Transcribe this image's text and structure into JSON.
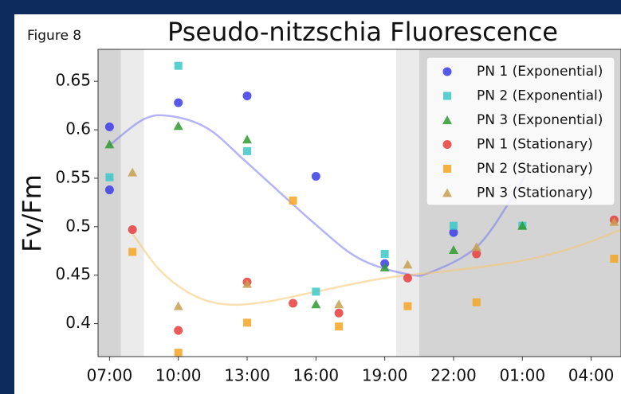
{
  "figure_label": "Figure 8",
  "chart_data": {
    "type": "scatter",
    "title": "Pseudo-nitzschia Fluorescence",
    "y_label": "Fv/Fm",
    "xlim": [
      6.5,
      29.3
    ],
    "ylim": [
      0.366,
      0.683
    ],
    "xticks": [
      {
        "value": 7,
        "label": "07:00"
      },
      {
        "value": 10,
        "label": "10:00"
      },
      {
        "value": 13,
        "label": "13:00"
      },
      {
        "value": 16,
        "label": "16:00"
      },
      {
        "value": 19,
        "label": "19:00"
      },
      {
        "value": 22,
        "label": "22:00"
      },
      {
        "value": 25,
        "label": "01:00"
      },
      {
        "value": 28,
        "label": "04:00"
      }
    ],
    "yticks": [
      0.4,
      0.45,
      0.5,
      0.55,
      0.6,
      0.65
    ],
    "legend": "upper right",
    "shading": [
      {
        "range": [
          6.5,
          7.5
        ],
        "color": "#d4d4d4"
      },
      {
        "range": [
          7.5,
          8.5
        ],
        "color": "#ebebeb"
      },
      {
        "range": [
          19.5,
          20.5
        ],
        "color": "#ebebeb"
      },
      {
        "range": [
          20.5,
          29.3
        ],
        "color": "#d4d4d4"
      }
    ],
    "series": [
      {
        "name": "PN 1 (Exponential)",
        "color": "#3b3be8",
        "marker": "circle",
        "x": [
          7,
          7,
          10,
          13,
          16,
          19,
          22
        ],
        "values": [
          0.603,
          0.538,
          0.628,
          0.635,
          0.552,
          0.462,
          0.494
        ]
      },
      {
        "name": "PN 2 (Exponential)",
        "color": "#3cc8c8",
        "marker": "square",
        "x": [
          7,
          10,
          13,
          16,
          19,
          22,
          25
        ],
        "values": [
          0.551,
          0.666,
          0.578,
          0.433,
          0.472,
          0.501,
          0.501
        ]
      },
      {
        "name": "PN 3 (Exponential)",
        "color": "#2e9a2e",
        "marker": "triangle",
        "x": [
          7,
          10,
          13,
          16,
          19,
          22,
          25
        ],
        "values": [
          0.585,
          0.604,
          0.59,
          0.42,
          0.458,
          0.476,
          0.501
        ]
      },
      {
        "name": "PN 1 (Stationary)",
        "color": "#e83c3c",
        "marker": "circle",
        "x": [
          8,
          10,
          13,
          15,
          17,
          20,
          23,
          29
        ],
        "values": [
          0.497,
          0.393,
          0.443,
          0.421,
          0.411,
          0.447,
          0.472,
          0.507
        ]
      },
      {
        "name": "PN 2 (Stationary)",
        "color": "#f5a623",
        "marker": "square",
        "x": [
          8,
          10,
          13,
          15,
          17,
          20,
          23,
          29
        ],
        "values": [
          0.474,
          0.37,
          0.401,
          0.527,
          0.397,
          0.418,
          0.422,
          0.467
        ]
      },
      {
        "name": "PN 3 (Stationary)",
        "color": "#c8a050",
        "marker": "triangle",
        "x": [
          8,
          10,
          13,
          17,
          20,
          23,
          29
        ],
        "values": [
          0.556,
          0.418,
          0.441,
          0.42,
          0.461,
          0.479,
          0.505
        ]
      }
    ],
    "fits": [
      {
        "color": "#7777ee",
        "x": [
          7,
          8.5,
          9.7,
          11.3,
          13,
          16,
          17.9,
          20,
          21,
          23,
          24.5,
          25.2
        ],
        "values": [
          0.584,
          0.611,
          0.614,
          0.601,
          0.566,
          0.502,
          0.467,
          0.451,
          0.453,
          0.479,
          0.528,
          0.557
        ]
      },
      {
        "color": "#f5c66e",
        "x": [
          8,
          9.2,
          10.6,
          12,
          13.7,
          16,
          19,
          22,
          25,
          27.3,
          29.3
        ],
        "values": [
          0.493,
          0.455,
          0.43,
          0.42,
          0.422,
          0.433,
          0.447,
          0.455,
          0.465,
          0.479,
          0.497
        ]
      }
    ]
  }
}
